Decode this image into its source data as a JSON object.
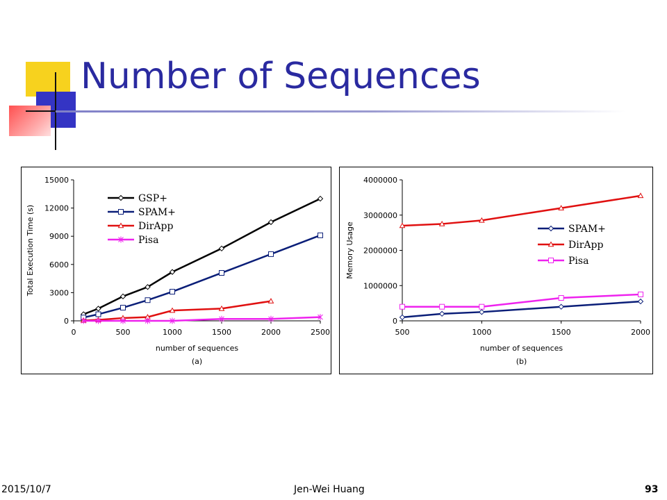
{
  "slide": {
    "title": "Number of Sequences",
    "footer_date": "2015/10/7",
    "footer_author": "Jen-Wei Huang",
    "footer_page": "93"
  },
  "colors": {
    "title": "#2a2aa0",
    "GSP+": "#000000",
    "SPAM+": "#0a1e78",
    "DirApp": "#e01010",
    "Pisa": "#ee22ee"
  },
  "chart_data": [
    {
      "type": "line",
      "xlabel": "number of sequences",
      "ylabel": "Total Execution Time (s)",
      "caption": "(a)",
      "xlim": [
        0,
        2500
      ],
      "ylim": [
        0,
        15000
      ],
      "xticks": [
        0,
        500,
        1000,
        1500,
        2000,
        2500
      ],
      "yticks": [
        0,
        3000,
        6000,
        9000,
        12000,
        15000
      ],
      "legend_position": "top-left",
      "series": [
        {
          "name": "GSP+",
          "marker": "diamond",
          "x": [
            100,
            250,
            500,
            750,
            1000,
            1500,
            2000,
            2500
          ],
          "y": [
            700,
            1300,
            2600,
            3600,
            5200,
            7700,
            10500,
            13000
          ]
        },
        {
          "name": "SPAM+",
          "marker": "square",
          "x": [
            100,
            250,
            500,
            750,
            1000,
            1500,
            2000,
            2500
          ],
          "y": [
            350,
            700,
            1400,
            2200,
            3100,
            5100,
            7100,
            9100
          ]
        },
        {
          "name": "DirApp",
          "marker": "triangle",
          "x": [
            100,
            250,
            500,
            750,
            1000,
            1500,
            2000
          ],
          "y": [
            50,
            100,
            300,
            400,
            1100,
            1300,
            2100
          ]
        },
        {
          "name": "Pisa",
          "marker": "star",
          "x": [
            100,
            250,
            500,
            750,
            1000,
            1500,
            2000,
            2500
          ],
          "y": [
            0,
            0,
            0,
            0,
            0,
            200,
            200,
            400
          ]
        }
      ]
    },
    {
      "type": "line",
      "xlabel": "number of sequences",
      "ylabel": "Memory Usage",
      "caption": "(b)",
      "xlim": [
        500,
        2000
      ],
      "ylim": [
        0,
        4000000
      ],
      "xticks": [
        500,
        1000,
        1500,
        2000
      ],
      "yticks": [
        0,
        1000000,
        2000000,
        3000000,
        4000000
      ],
      "legend_position": "right",
      "series": [
        {
          "name": "SPAM+",
          "marker": "diamond",
          "x": [
            500,
            750,
            1000,
            1500,
            2000
          ],
          "y": [
            100000,
            200000,
            250000,
            400000,
            550000
          ]
        },
        {
          "name": "DirApp",
          "marker": "triangle",
          "x": [
            500,
            750,
            1000,
            1500,
            2000
          ],
          "y": [
            2700000,
            2750000,
            2850000,
            3200000,
            3550000
          ]
        },
        {
          "name": "Pisa",
          "marker": "square",
          "x": [
            500,
            750,
            1000,
            1500,
            2000
          ],
          "y": [
            400000,
            400000,
            400000,
            650000,
            750000
          ]
        }
      ]
    }
  ]
}
